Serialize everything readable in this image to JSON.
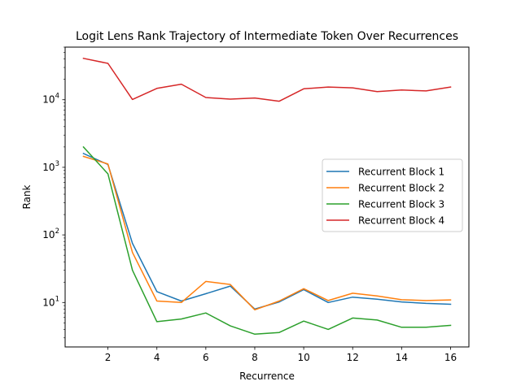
{
  "chart_data": {
    "type": "line",
    "title": "Logit Lens Rank Trajectory of Intermediate Token Over Recurrences",
    "xlabel": "Recurrence",
    "ylabel": "Rank",
    "y_scale": "log",
    "xlim": [
      0.25,
      16.75
    ],
    "ylim": [
      2.2,
      60000
    ],
    "grid": false,
    "legend_position": "center-right",
    "x": [
      1,
      2,
      3,
      4,
      5,
      6,
      7,
      8,
      9,
      10,
      11,
      12,
      13,
      14,
      15,
      16
    ],
    "x_ticks": [
      2,
      4,
      6,
      8,
      10,
      12,
      14,
      16
    ],
    "x_tick_labels": [
      "2",
      "4",
      "6",
      "8",
      "10",
      "12",
      "14",
      "16"
    ],
    "y_ticks": [
      {
        "value": 10,
        "base": "10",
        "exp": "1"
      },
      {
        "value": 100,
        "base": "10",
        "exp": "2"
      },
      {
        "value": 1000,
        "base": "10",
        "exp": "3"
      },
      {
        "value": 10000,
        "base": "10",
        "exp": "4"
      }
    ],
    "series": [
      {
        "name": "Recurrent Block 1",
        "color": "#1f77b4",
        "values": [
          1600,
          1100,
          75,
          14.5,
          10.5,
          13.5,
          17.5,
          8.0,
          10.2,
          15.5,
          10.0,
          12.0,
          11.2,
          10.2,
          9.7,
          9.4
        ]
      },
      {
        "name": "Recurrent Block 2",
        "color": "#ff7f0e",
        "values": [
          1450,
          1120,
          55,
          10.5,
          10.0,
          20.5,
          18.5,
          7.8,
          10.5,
          16.0,
          10.7,
          13.7,
          12.5,
          11.0,
          10.7,
          10.9
        ]
      },
      {
        "name": "Recurrent Block 3",
        "color": "#2ca02c",
        "values": [
          2000,
          800,
          30,
          5.2,
          5.7,
          7.0,
          4.5,
          3.4,
          3.6,
          5.3,
          4.0,
          5.9,
          5.5,
          4.3,
          4.3,
          4.6
        ]
      },
      {
        "name": "Recurrent Block 4",
        "color": "#d62728",
        "values": [
          41000,
          34500,
          10100,
          14700,
          17000,
          10800,
          10200,
          10600,
          9500,
          14500,
          15400,
          15000,
          13200,
          13900,
          13500,
          15400
        ]
      }
    ]
  }
}
